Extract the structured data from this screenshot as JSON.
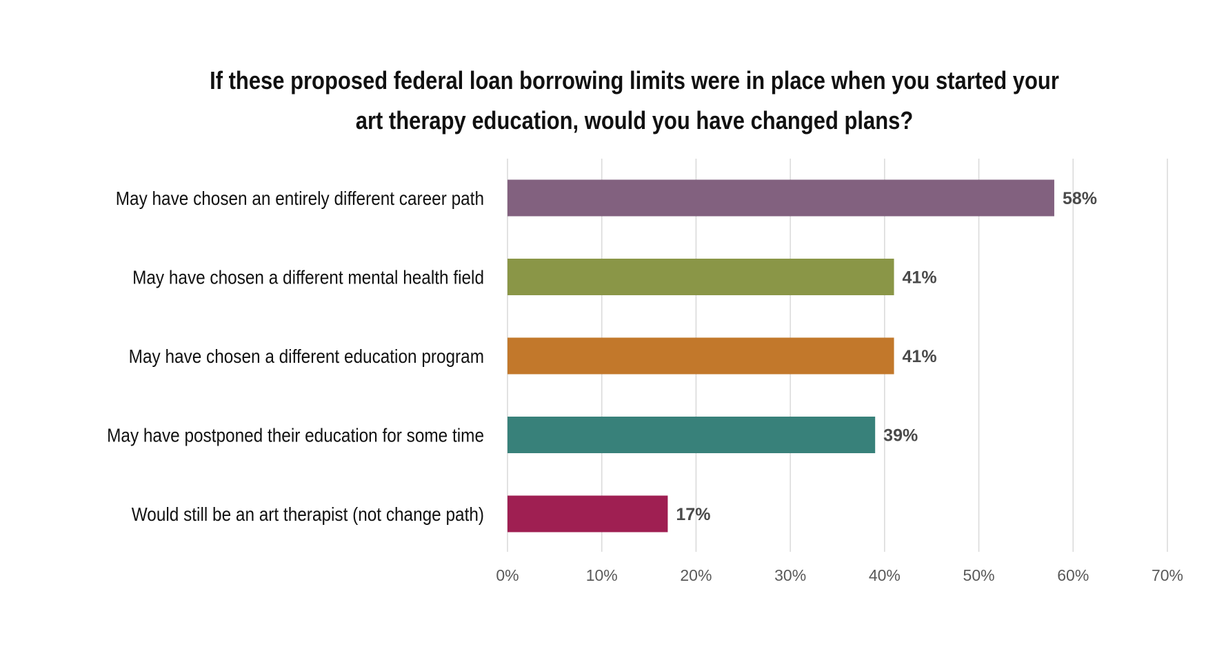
{
  "chart_data": {
    "type": "bar",
    "orientation": "horizontal",
    "title": "If these proposed federal loan borrowing limits were in place when you started your art therapy education, would you have changed plans?",
    "title_lines": [
      "If these proposed federal loan borrowing limits were in place when you started your",
      "art therapy education, would you have changed plans?"
    ],
    "categories": [
      "May have chosen an entirely different career path",
      "May have chosen a different mental health field",
      "May have chosen a different education program",
      "May have postponed their education for some time",
      "Would still be an art therapist (not change path)"
    ],
    "values": [
      58,
      41,
      41,
      39,
      17
    ],
    "data_labels": [
      "58%",
      "41%",
      "41%",
      "39%",
      "17%"
    ],
    "colors": [
      "#82617f",
      "#8a9647",
      "#c2782b",
      "#38817a",
      "#9f1f52"
    ],
    "xlim": [
      0,
      70
    ],
    "xticks": [
      0,
      10,
      20,
      30,
      40,
      50,
      60,
      70
    ],
    "xtick_labels": [
      "0%",
      "10%",
      "20%",
      "30%",
      "40%",
      "50%",
      "60%",
      "70%"
    ],
    "grid": true,
    "legend": "none",
    "xlabel": "",
    "ylabel": ""
  }
}
